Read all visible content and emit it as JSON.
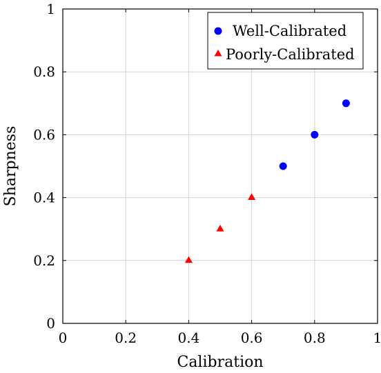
{
  "chart_data": {
    "type": "scatter",
    "xlabel": "Calibration",
    "ylabel": "Sharpness",
    "xlim": [
      0,
      1
    ],
    "ylim": [
      0,
      1
    ],
    "xticks": [
      "0",
      "0.2",
      "0.4",
      "0.6",
      "0.8",
      "1"
    ],
    "yticks": [
      "0",
      "0.2",
      "0.4",
      "0.6",
      "0.8",
      "1"
    ],
    "grid": true,
    "legend_position": "top-right",
    "series": [
      {
        "name": "Well-Calibrated",
        "marker": "circle",
        "color": "#0000ff",
        "points": [
          {
            "x": 0.7,
            "y": 0.5
          },
          {
            "x": 0.8,
            "y": 0.6
          },
          {
            "x": 0.9,
            "y": 0.7
          }
        ]
      },
      {
        "name": "Poorly-Calibrated",
        "marker": "triangle",
        "color": "#ff0000",
        "points": [
          {
            "x": 0.4,
            "y": 0.2
          },
          {
            "x": 0.5,
            "y": 0.3
          },
          {
            "x": 0.6,
            "y": 0.4
          }
        ]
      }
    ]
  }
}
